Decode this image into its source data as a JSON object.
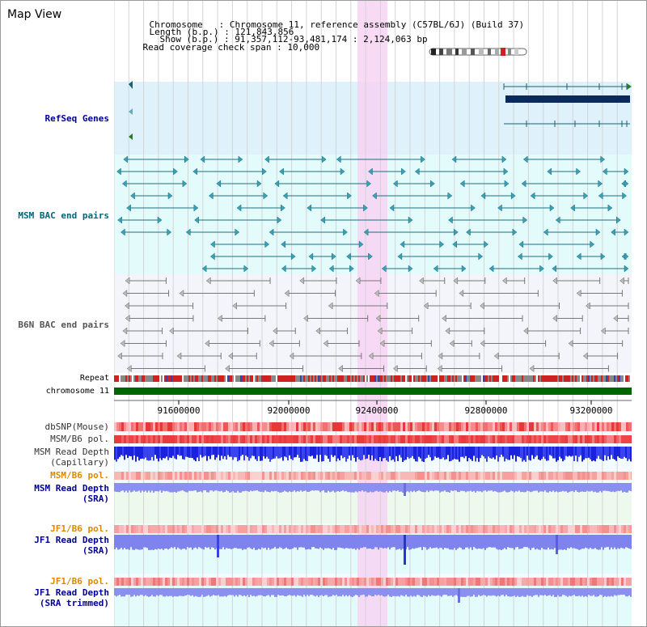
{
  "title": "Map View",
  "info": {
    "chromosome_label": "Chromosome",
    "chromosome_value": "Chromosome 11, reference assembly (C57BL/6J) (Build 37)",
    "length_label": "Length (b.p.)",
    "length_value": "121,843,856",
    "show_label": "Show (b.p.)",
    "show_value": "91,357,112-93,481,174 : 2,124,063 bp",
    "coverage_label": "Read coverage check span",
    "coverage_value": "10,000"
  },
  "tracks": {
    "refseq": "RefSeq Genes",
    "msm_bac": "MSM BAC end pairs",
    "b6n_bac": "B6N BAC end pairs",
    "repeat": "Repeat",
    "chromosome": "chromosome 11",
    "dbsnp": "dbSNP(Mouse)",
    "msm_b6_pol_1": "MSM/B6 pol.",
    "msm_depth_cap_1": "MSM Read Depth",
    "msm_depth_cap_2": "(Capillary)",
    "msm_b6_pol_2": "MSM/B6 pol.",
    "msm_depth_sra_1": "MSM Read Depth",
    "msm_depth_sra_2": "(SRA)",
    "jf1_b6_pol_1": "JF1/B6 pol.",
    "jf1_depth_sra_1": "JF1 Read Depth",
    "jf1_depth_sra_2": "(SRA)",
    "jf1_b6_pol_2": "JF1/B6 pol.",
    "jf1_depth_trim_1": "JF1 Read Depth",
    "jf1_depth_trim_2": "(SRA trimmed)"
  },
  "axis_ticks": [
    "91600000",
    "92000000",
    "92400000",
    "92800000",
    "93200000"
  ],
  "colors": {
    "refseq_label": "#000099",
    "msm_label": "#006677",
    "b6n_label": "#555555",
    "orange_label": "#dd8800",
    "blue_label": "#000099",
    "refseq_bg": "#dff1fb",
    "msm_bg": "#e3fbfb",
    "b6n_bg": "#f4f5fb",
    "highlight": "#f7d3f3",
    "chromosome_bar": "#006600"
  }
}
